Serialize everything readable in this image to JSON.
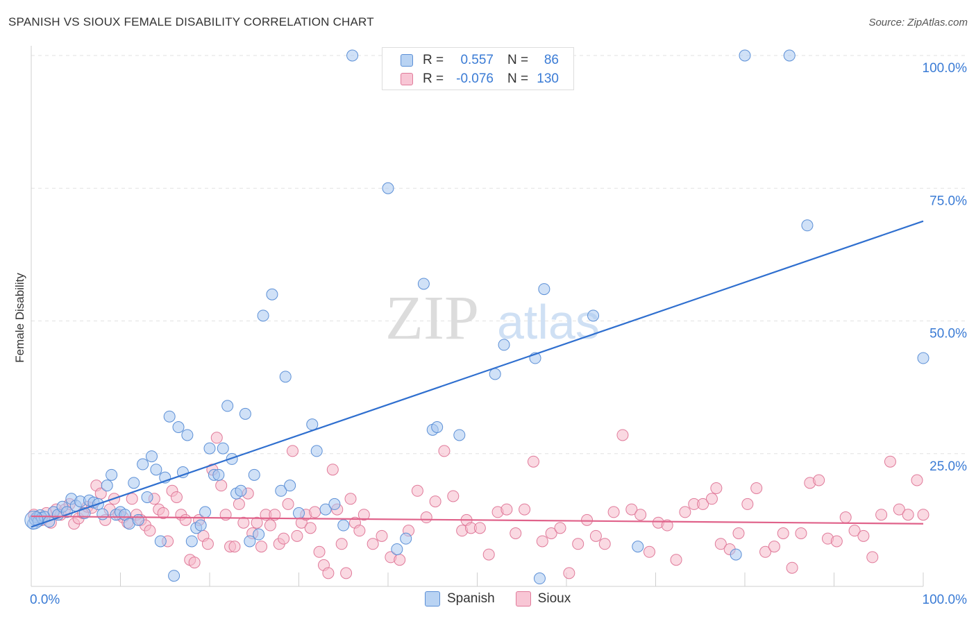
{
  "title": "SPANISH VS SIOUX FEMALE DISABILITY CORRELATION CHART",
  "source": "Source: ZipAtlas.com",
  "watermark": {
    "zip": "ZIP",
    "atlas": "atlas"
  },
  "legend": {
    "spanish": {
      "r_label": "R =",
      "r_value": "0.557",
      "n_label": "N =",
      "n_value": "86"
    },
    "sioux": {
      "r_label": "R =",
      "r_value": "-0.076",
      "n_label": "N =",
      "n_value": "130"
    }
  },
  "colors": {
    "spanish_fill": "#a9c8f0",
    "spanish_stroke": "#5b8fd6",
    "spanish_line": "#2f6fcf",
    "sioux_fill": "#f6b9cb",
    "sioux_stroke": "#e07a9a",
    "sioux_line": "#e0628a",
    "axis_label": "#3a7bd5"
  },
  "chart_data": {
    "type": "scatter",
    "title": "SPANISH VS SIOUX FEMALE DISABILITY CORRELATION CHART",
    "xlabel": "",
    "ylabel": "Female Disability",
    "xlim": [
      0,
      100
    ],
    "ylim": [
      0,
      105
    ],
    "x_tick_labels": [
      "0.0%",
      "100.0%"
    ],
    "y_ticks": [
      25,
      50,
      75,
      100
    ],
    "y_tick_labels": [
      "25.0%",
      "50.0%",
      "75.0%",
      "100.0%"
    ],
    "grid": true,
    "legend_position": "top-center",
    "series": [
      {
        "name": "Spanish",
        "trend": [
          [
            0,
            11.2
          ],
          [
            100,
            68.8
          ]
        ],
        "points": [
          [
            0.2,
            11.8
          ],
          [
            0.4,
            12.6
          ],
          [
            0.6,
            13.0
          ],
          [
            0.8,
            12.3
          ],
          [
            1.0,
            13.4
          ],
          [
            1.2,
            12.9
          ],
          [
            1.5,
            13.1
          ],
          [
            2.0,
            12.2
          ],
          [
            2.5,
            14.0
          ],
          [
            3.0,
            13.5
          ],
          [
            3.5,
            15.0
          ],
          [
            4.0,
            14.0
          ],
          [
            4.5,
            16.5
          ],
          [
            5.0,
            15.2
          ],
          [
            5.5,
            16.0
          ],
          [
            6.0,
            13.8
          ],
          [
            6.5,
            16.2
          ],
          [
            7.0,
            15.8
          ],
          [
            7.5,
            15.5
          ],
          [
            8.0,
            13.6
          ],
          [
            8.5,
            19.0
          ],
          [
            9.0,
            21.0
          ],
          [
            9.5,
            13.5
          ],
          [
            10.0,
            14.0
          ],
          [
            10.5,
            13.5
          ],
          [
            11.0,
            11.8
          ],
          [
            11.5,
            19.5
          ],
          [
            12.0,
            12.5
          ],
          [
            12.5,
            23.0
          ],
          [
            13.0,
            16.8
          ],
          [
            13.5,
            24.5
          ],
          [
            14.0,
            22.0
          ],
          [
            14.5,
            8.5
          ],
          [
            15.0,
            20.5
          ],
          [
            15.5,
            32.0
          ],
          [
            16.0,
            2.0
          ],
          [
            16.5,
            30.0
          ],
          [
            17.0,
            21.5
          ],
          [
            17.5,
            28.5
          ],
          [
            18.0,
            8.5
          ],
          [
            18.5,
            11.0
          ],
          [
            19.0,
            11.5
          ],
          [
            19.5,
            14.0
          ],
          [
            20.0,
            26.0
          ],
          [
            20.5,
            21.0
          ],
          [
            21.0,
            21.0
          ],
          [
            21.5,
            26.0
          ],
          [
            22.0,
            34.0
          ],
          [
            22.5,
            24.0
          ],
          [
            23.0,
            17.5
          ],
          [
            23.5,
            18.0
          ],
          [
            24.0,
            32.5
          ],
          [
            24.5,
            8.5
          ],
          [
            25.0,
            21.0
          ],
          [
            25.5,
            9.8
          ],
          [
            26.0,
            51.0
          ],
          [
            27.0,
            55.0
          ],
          [
            28.0,
            18.0
          ],
          [
            28.5,
            39.5
          ],
          [
            29.0,
            19.0
          ],
          [
            30.0,
            13.8
          ],
          [
            31.5,
            30.5
          ],
          [
            32.0,
            25.5
          ],
          [
            33.0,
            14.5
          ],
          [
            34.0,
            15.5
          ],
          [
            35.0,
            11.5
          ],
          [
            36.0,
            100.0
          ],
          [
            40.0,
            75.0
          ],
          [
            41.0,
            7.0
          ],
          [
            42.0,
            9.0
          ],
          [
            44.0,
            57.0
          ],
          [
            45.0,
            29.5
          ],
          [
            45.5,
            30.0
          ],
          [
            48.0,
            28.5
          ],
          [
            52.0,
            40.0
          ],
          [
            53.0,
            45.5
          ],
          [
            56.5,
            43.0
          ],
          [
            57.0,
            1.5
          ],
          [
            57.5,
            56.0
          ],
          [
            63.0,
            51.0
          ],
          [
            68.0,
            7.5
          ],
          [
            79.0,
            6.0
          ],
          [
            80.0,
            100.0
          ],
          [
            85.0,
            100.0
          ],
          [
            87.0,
            68.0
          ],
          [
            100.0,
            43.0
          ]
        ]
      },
      {
        "name": "Sioux",
        "trend": [
          [
            0,
            13.2
          ],
          [
            100,
            11.8
          ]
        ],
        "points": [
          [
            0.3,
            13.5
          ],
          [
            0.7,
            13.0
          ],
          [
            1.2,
            12.5
          ],
          [
            1.7,
            13.8
          ],
          [
            2.2,
            12.0
          ],
          [
            2.8,
            14.5
          ],
          [
            3.3,
            13.5
          ],
          [
            3.8,
            14.5
          ],
          [
            4.3,
            15.5
          ],
          [
            4.8,
            11.8
          ],
          [
            5.3,
            12.8
          ],
          [
            5.8,
            13.8
          ],
          [
            6.3,
            15.0
          ],
          [
            6.8,
            14.8
          ],
          [
            7.3,
            19.0
          ],
          [
            7.8,
            17.5
          ],
          [
            8.3,
            12.5
          ],
          [
            8.8,
            14.5
          ],
          [
            9.3,
            16.5
          ],
          [
            9.8,
            13.5
          ],
          [
            10.3,
            13.0
          ],
          [
            10.8,
            12.0
          ],
          [
            11.3,
            16.5
          ],
          [
            11.8,
            13.5
          ],
          [
            12.3,
            12.5
          ],
          [
            12.8,
            11.5
          ],
          [
            13.3,
            10.5
          ],
          [
            13.8,
            16.5
          ],
          [
            14.3,
            14.5
          ],
          [
            14.8,
            13.8
          ],
          [
            15.3,
            8.5
          ],
          [
            15.8,
            18.0
          ],
          [
            16.3,
            16.8
          ],
          [
            16.8,
            13.5
          ],
          [
            17.3,
            12.5
          ],
          [
            17.8,
            5.0
          ],
          [
            18.3,
            4.5
          ],
          [
            18.8,
            12.5
          ],
          [
            19.3,
            9.5
          ],
          [
            19.8,
            8.0
          ],
          [
            20.3,
            22.0
          ],
          [
            20.8,
            28.0
          ],
          [
            21.3,
            19.0
          ],
          [
            21.8,
            13.5
          ],
          [
            22.3,
            7.5
          ],
          [
            22.8,
            7.5
          ],
          [
            23.3,
            15.5
          ],
          [
            23.8,
            12.0
          ],
          [
            24.3,
            17.5
          ],
          [
            24.8,
            10.0
          ],
          [
            25.3,
            12.0
          ],
          [
            25.8,
            7.5
          ],
          [
            26.3,
            13.5
          ],
          [
            26.8,
            11.5
          ],
          [
            27.3,
            13.5
          ],
          [
            27.8,
            8.0
          ],
          [
            28.3,
            9.0
          ],
          [
            28.8,
            15.5
          ],
          [
            29.3,
            25.5
          ],
          [
            29.8,
            9.5
          ],
          [
            30.3,
            12.0
          ],
          [
            30.8,
            13.5
          ],
          [
            31.3,
            11.0
          ],
          [
            31.8,
            14.0
          ],
          [
            32.3,
            6.5
          ],
          [
            32.8,
            4.0
          ],
          [
            33.3,
            2.5
          ],
          [
            33.8,
            22.0
          ],
          [
            34.3,
            14.5
          ],
          [
            34.8,
            8.0
          ],
          [
            35.3,
            2.5
          ],
          [
            35.8,
            16.5
          ],
          [
            36.3,
            12.0
          ],
          [
            36.8,
            10.5
          ],
          [
            37.3,
            13.5
          ],
          [
            38.3,
            8.0
          ],
          [
            39.3,
            9.5
          ],
          [
            40.3,
            5.5
          ],
          [
            41.3,
            5.0
          ],
          [
            42.3,
            10.5
          ],
          [
            43.3,
            18.0
          ],
          [
            44.3,
            13.0
          ],
          [
            45.3,
            16.0
          ],
          [
            46.3,
            25.5
          ],
          [
            47.3,
            17.0
          ],
          [
            48.3,
            10.5
          ],
          [
            48.8,
            12.5
          ],
          [
            49.3,
            11.0
          ],
          [
            50.3,
            11.0
          ],
          [
            51.3,
            6.0
          ],
          [
            52.3,
            14.0
          ],
          [
            53.3,
            14.5
          ],
          [
            54.3,
            10.0
          ],
          [
            55.3,
            14.5
          ],
          [
            56.3,
            23.5
          ],
          [
            57.3,
            8.5
          ],
          [
            58.3,
            10.0
          ],
          [
            59.3,
            11.0
          ],
          [
            60.3,
            2.5
          ],
          [
            61.3,
            8.0
          ],
          [
            62.3,
            12.5
          ],
          [
            63.3,
            9.5
          ],
          [
            64.3,
            8.0
          ],
          [
            65.3,
            14.0
          ],
          [
            66.3,
            28.5
          ],
          [
            67.3,
            14.5
          ],
          [
            68.3,
            13.5
          ],
          [
            69.3,
            6.5
          ],
          [
            70.3,
            12.0
          ],
          [
            71.3,
            11.5
          ],
          [
            72.3,
            5.0
          ],
          [
            73.3,
            14.0
          ],
          [
            74.3,
            15.5
          ],
          [
            75.3,
            15.5
          ],
          [
            76.3,
            16.5
          ],
          [
            76.8,
            18.5
          ],
          [
            77.3,
            8.0
          ],
          [
            78.3,
            7.0
          ],
          [
            79.3,
            10.0
          ],
          [
            80.3,
            15.5
          ],
          [
            81.3,
            18.5
          ],
          [
            82.3,
            6.5
          ],
          [
            83.3,
            7.5
          ],
          [
            84.3,
            10.0
          ],
          [
            85.3,
            3.5
          ],
          [
            86.3,
            10.0
          ],
          [
            87.3,
            19.5
          ],
          [
            88.3,
            20.0
          ],
          [
            89.3,
            9.0
          ],
          [
            90.3,
            8.5
          ],
          [
            91.3,
            13.0
          ],
          [
            92.3,
            10.5
          ],
          [
            93.3,
            9.5
          ],
          [
            94.3,
            5.5
          ],
          [
            95.3,
            13.5
          ],
          [
            96.3,
            23.5
          ],
          [
            97.3,
            14.5
          ],
          [
            98.3,
            13.5
          ],
          [
            99.3,
            20.0
          ],
          [
            100.0,
            13.5
          ]
        ]
      }
    ]
  }
}
